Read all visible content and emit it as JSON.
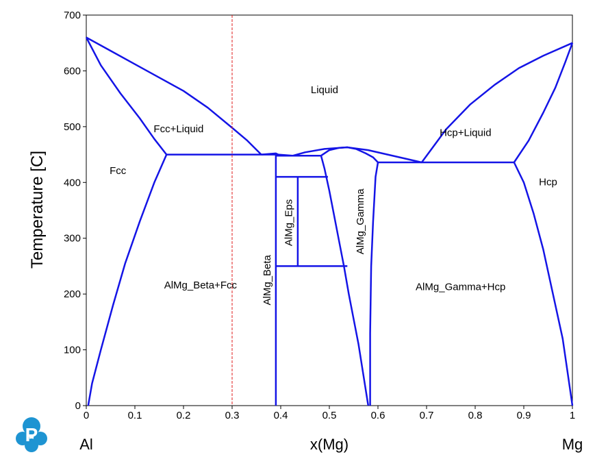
{
  "chart_data": {
    "type": "line",
    "xlabel": "x(Mg)",
    "ylabel": "Temperature [C]",
    "xlim": [
      0,
      1
    ],
    "ylim": [
      0,
      700
    ],
    "xticks": [
      "0",
      "0.1",
      "0.2",
      "0.3",
      "0.4",
      "0.5",
      "0.6",
      "0.7",
      "0.8",
      "0.9",
      "1"
    ],
    "yticks": [
      "0",
      "100",
      "200",
      "300",
      "400",
      "500",
      "600",
      "700"
    ],
    "x_end_labels": {
      "left": "Al",
      "right": "Mg"
    },
    "line_color": "#1414e6",
    "marker_line": {
      "x": 0.3,
      "color": "#e01b1b",
      "style": "dashed"
    },
    "regions": [
      {
        "label": "Liquid",
        "x": 0.49,
        "y": 565
      },
      {
        "label": "Fcc+Liquid",
        "x": 0.19,
        "y": 495
      },
      {
        "label": "Fcc",
        "x": 0.065,
        "y": 420
      },
      {
        "label": "Hcp+Liquid",
        "x": 0.78,
        "y": 488
      },
      {
        "label": "Hcp",
        "x": 0.95,
        "y": 400
      },
      {
        "label": "AlMg_Beta+Fcc",
        "x": 0.235,
        "y": 215
      },
      {
        "label": "AlMg_Gamma+Hcp",
        "x": 0.77,
        "y": 212
      },
      {
        "label": "AlMg_Beta",
        "x": 0.373,
        "y": 225,
        "rotate": true
      },
      {
        "label": "AlMg_Eps",
        "x": 0.418,
        "y": 328,
        "rotate": true
      },
      {
        "label": "AlMg_Gamma",
        "x": 0.565,
        "y": 330,
        "rotate": true
      }
    ],
    "series": [
      {
        "points": [
          [
            0,
            660
          ],
          [
            0.05,
            636
          ],
          [
            0.1,
            612
          ],
          [
            0.15,
            588
          ],
          [
            0.2,
            564
          ],
          [
            0.25,
            534
          ],
          [
            0.3,
            498
          ],
          [
            0.33,
            476
          ],
          [
            0.36,
            450
          ]
        ]
      },
      {
        "points": [
          [
            0,
            660
          ],
          [
            0.03,
            610
          ],
          [
            0.07,
            560
          ],
          [
            0.11,
            515
          ],
          [
            0.14,
            478
          ],
          [
            0.165,
            450
          ]
        ]
      },
      {
        "points": [
          [
            0.165,
            450
          ],
          [
            0.14,
            400
          ],
          [
            0.11,
            330
          ],
          [
            0.08,
            255
          ],
          [
            0.055,
            180
          ],
          [
            0.03,
            100
          ],
          [
            0.012,
            40
          ],
          [
            0.004,
            0
          ]
        ]
      },
      {
        "points": [
          [
            0.165,
            450
          ],
          [
            0.395,
            450
          ]
        ]
      },
      {
        "points": [
          [
            0.36,
            450
          ],
          [
            0.39,
            452
          ],
          [
            0.395,
            450
          ]
        ]
      },
      {
        "points": [
          [
            0.39,
            450
          ],
          [
            0.39,
            0
          ]
        ]
      },
      {
        "points": [
          [
            0.395,
            450
          ],
          [
            0.425,
            448
          ],
          [
            0.45,
            454
          ],
          [
            0.49,
            460
          ],
          [
            0.537,
            463
          ],
          [
            0.58,
            458
          ],
          [
            0.62,
            450
          ],
          [
            0.66,
            442
          ],
          [
            0.69,
            436
          ]
        ]
      },
      {
        "points": [
          [
            0.39,
            448
          ],
          [
            0.483,
            448
          ]
        ]
      },
      {
        "points": [
          [
            0.483,
            448
          ],
          [
            0.49,
            425
          ],
          [
            0.5,
            385
          ],
          [
            0.51,
            340
          ],
          [
            0.52,
            295
          ],
          [
            0.53,
            250
          ],
          [
            0.54,
            200
          ],
          [
            0.55,
            155
          ],
          [
            0.56,
            110
          ],
          [
            0.57,
            55
          ],
          [
            0.58,
            0
          ]
        ]
      },
      {
        "points": [
          [
            0.483,
            448
          ],
          [
            0.5,
            458
          ],
          [
            0.52,
            462
          ],
          [
            0.537,
            463
          ],
          [
            0.555,
            460
          ],
          [
            0.575,
            452
          ],
          [
            0.59,
            445
          ],
          [
            0.6,
            436
          ]
        ]
      },
      {
        "points": [
          [
            0.6,
            436
          ],
          [
            0.595,
            410
          ],
          [
            0.59,
            330
          ],
          [
            0.586,
            250
          ],
          [
            0.584,
            130
          ],
          [
            0.584,
            0
          ]
        ]
      },
      {
        "points": [
          [
            0.6,
            436
          ],
          [
            0.88,
            436
          ]
        ]
      },
      {
        "points": [
          [
            0.69,
            436
          ],
          [
            0.74,
            495
          ],
          [
            0.79,
            540
          ],
          [
            0.84,
            575
          ],
          [
            0.89,
            605
          ],
          [
            0.94,
            627
          ],
          [
            1,
            650
          ]
        ]
      },
      {
        "points": [
          [
            0.88,
            436
          ],
          [
            0.91,
            475
          ],
          [
            0.94,
            525
          ],
          [
            0.965,
            570
          ],
          [
            0.985,
            615
          ],
          [
            1,
            650
          ]
        ]
      },
      {
        "points": [
          [
            0.88,
            436
          ],
          [
            0.9,
            400
          ],
          [
            0.92,
            345
          ],
          [
            0.94,
            280
          ],
          [
            0.96,
            200
          ],
          [
            0.98,
            120
          ],
          [
            0.99,
            60
          ],
          [
            1,
            0
          ]
        ]
      },
      {
        "points": [
          [
            0.39,
            410
          ],
          [
            0.497,
            410
          ]
        ]
      },
      {
        "points": [
          [
            0.435,
            410
          ],
          [
            0.435,
            250
          ]
        ]
      },
      {
        "points": [
          [
            0.39,
            250
          ],
          [
            0.537,
            250
          ]
        ]
      }
    ]
  },
  "logo": {
    "letter": "P"
  }
}
